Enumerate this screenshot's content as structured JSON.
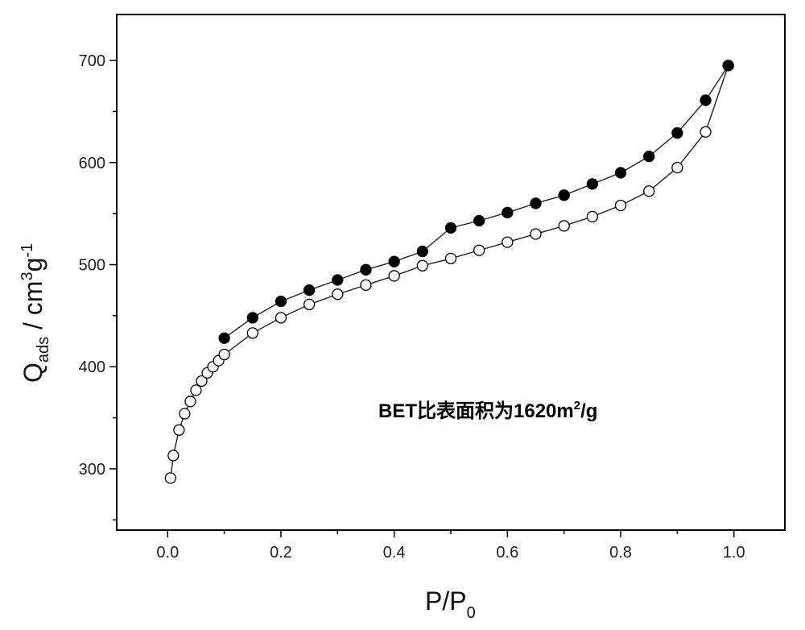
{
  "chart_data": {
    "type": "scatter",
    "xlim": [
      -0.09,
      1.09
    ],
    "ylim": [
      240,
      745
    ],
    "x_ticks": [
      "0.0",
      "0.2",
      "0.4",
      "0.6",
      "0.8",
      "1.0"
    ],
    "x_tick_values": [
      0.0,
      0.2,
      0.4,
      0.6,
      0.8,
      1.0
    ],
    "y_ticks": [
      "300",
      "400",
      "500",
      "600",
      "700"
    ],
    "y_tick_values": [
      300,
      400,
      500,
      600,
      700
    ],
    "xlabel": {
      "main": "P/P",
      "sub": "0"
    },
    "ylabel": {
      "main": "Q",
      "sub": "ads",
      "unit_pre": " / cm",
      "sup1": "3",
      "unit_mid": "g",
      "sup2": "-1"
    },
    "annotation": {
      "text_a": "BET比表面积为1620m",
      "sup": "2",
      "text_b": "/g"
    },
    "series": [
      {
        "marker": "open-circle",
        "points": [
          [
            0.005,
            291
          ],
          [
            0.01,
            313
          ],
          [
            0.02,
            338
          ],
          [
            0.03,
            354
          ],
          [
            0.04,
            366
          ],
          [
            0.05,
            377
          ],
          [
            0.06,
            386
          ],
          [
            0.07,
            394
          ],
          [
            0.08,
            400
          ],
          [
            0.09,
            406
          ],
          [
            0.1,
            412
          ],
          [
            0.15,
            433
          ],
          [
            0.2,
            448
          ],
          [
            0.25,
            461
          ],
          [
            0.3,
            471
          ],
          [
            0.35,
            480
          ],
          [
            0.4,
            489
          ],
          [
            0.45,
            499
          ],
          [
            0.5,
            506
          ],
          [
            0.55,
            514
          ],
          [
            0.6,
            522
          ],
          [
            0.65,
            530
          ],
          [
            0.7,
            538
          ],
          [
            0.75,
            547
          ],
          [
            0.8,
            558
          ],
          [
            0.85,
            572
          ],
          [
            0.9,
            595
          ],
          [
            0.95,
            630
          ],
          [
            0.99,
            695
          ]
        ]
      },
      {
        "marker": "filled-circle",
        "points": [
          [
            0.99,
            695
          ],
          [
            0.95,
            661
          ],
          [
            0.9,
            629
          ],
          [
            0.85,
            606
          ],
          [
            0.8,
            590
          ],
          [
            0.75,
            579
          ],
          [
            0.7,
            568
          ],
          [
            0.65,
            560
          ],
          [
            0.6,
            551
          ],
          [
            0.55,
            543
          ],
          [
            0.5,
            536
          ],
          [
            0.45,
            513
          ],
          [
            0.4,
            503
          ],
          [
            0.35,
            495
          ],
          [
            0.3,
            485
          ],
          [
            0.25,
            475
          ],
          [
            0.2,
            464
          ],
          [
            0.15,
            448
          ],
          [
            0.1,
            428
          ]
        ]
      }
    ]
  }
}
